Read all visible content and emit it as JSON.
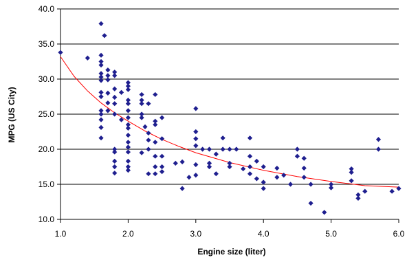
{
  "chart_data": {
    "type": "scatter",
    "title": "",
    "xlabel": "Engine size (liter)",
    "ylabel": "MPG (US City)",
    "xlim": [
      1.0,
      6.0
    ],
    "ylim": [
      10.0,
      40.0
    ],
    "x_ticks": [
      "1.0",
      "2.0",
      "3.0",
      "4.0",
      "5.0",
      "6.0"
    ],
    "y_ticks": [
      "10.0",
      "15.0",
      "20.0",
      "25.0",
      "30.0",
      "35.0",
      "40.0"
    ],
    "grid": "horizontal",
    "marker_color": "#1f1f8f",
    "trend_color": "#ff0000",
    "series": [
      {
        "values": [
          [
            1.0,
            33.8
          ],
          [
            1.4,
            33.0
          ],
          [
            1.6,
            37.9
          ],
          [
            1.6,
            33.4
          ],
          [
            1.6,
            32.5
          ],
          [
            1.6,
            32.0
          ],
          [
            1.6,
            30.8
          ],
          [
            1.6,
            30.3
          ],
          [
            1.6,
            29.8
          ],
          [
            1.6,
            28.1
          ],
          [
            1.6,
            27.5
          ],
          [
            1.6,
            25.5
          ],
          [
            1.6,
            25.0
          ],
          [
            1.6,
            24.2
          ],
          [
            1.6,
            23.1
          ],
          [
            1.6,
            21.6
          ],
          [
            1.65,
            36.2
          ],
          [
            1.7,
            31.3
          ],
          [
            1.7,
            30.5
          ],
          [
            1.7,
            29.9
          ],
          [
            1.7,
            28.0
          ],
          [
            1.7,
            26.6
          ],
          [
            1.7,
            25.5
          ],
          [
            1.8,
            31.0
          ],
          [
            1.8,
            30.5
          ],
          [
            1.8,
            28.6
          ],
          [
            1.8,
            27.4
          ],
          [
            1.8,
            26.5
          ],
          [
            1.8,
            25.0
          ],
          [
            1.8,
            20.0
          ],
          [
            1.8,
            19.6
          ],
          [
            1.8,
            18.3
          ],
          [
            1.8,
            17.5
          ],
          [
            1.8,
            16.6
          ],
          [
            1.9,
            24.2
          ],
          [
            1.9,
            28.1
          ],
          [
            2.0,
            29.5
          ],
          [
            2.0,
            29.0
          ],
          [
            2.0,
            28.5
          ],
          [
            2.0,
            27.0
          ],
          [
            2.0,
            26.5
          ],
          [
            2.0,
            25.5
          ],
          [
            2.0,
            24.5
          ],
          [
            2.0,
            23.5
          ],
          [
            2.0,
            23.0
          ],
          [
            2.0,
            22.0
          ],
          [
            2.0,
            21.0
          ],
          [
            2.0,
            20.3
          ],
          [
            2.0,
            19.6
          ],
          [
            2.0,
            18.3
          ],
          [
            2.0,
            17.5
          ],
          [
            2.0,
            17.0
          ],
          [
            2.2,
            27.8
          ],
          [
            2.2,
            27.0
          ],
          [
            2.2,
            26.5
          ],
          [
            2.2,
            25.0
          ],
          [
            2.2,
            24.5
          ],
          [
            2.2,
            19.5
          ],
          [
            2.25,
            23.2
          ],
          [
            2.3,
            26.5
          ],
          [
            2.3,
            22.3
          ],
          [
            2.3,
            21.3
          ],
          [
            2.3,
            20.0
          ],
          [
            2.3,
            16.5
          ],
          [
            2.4,
            27.8
          ],
          [
            2.4,
            24.0
          ],
          [
            2.4,
            23.5
          ],
          [
            2.4,
            21.0
          ],
          [
            2.4,
            19.0
          ],
          [
            2.4,
            17.5
          ],
          [
            2.4,
            16.5
          ],
          [
            2.5,
            24.5
          ],
          [
            2.5,
            21.5
          ],
          [
            2.5,
            19.0
          ],
          [
            2.5,
            17.5
          ],
          [
            2.5,
            16.8
          ],
          [
            2.7,
            18.0
          ],
          [
            2.8,
            18.2
          ],
          [
            2.8,
            14.4
          ],
          [
            2.9,
            16.0
          ],
          [
            3.0,
            25.8
          ],
          [
            3.0,
            22.5
          ],
          [
            3.0,
            21.5
          ],
          [
            3.0,
            20.5
          ],
          [
            3.0,
            17.8
          ],
          [
            3.0,
            16.3
          ],
          [
            3.1,
            20.0
          ],
          [
            3.2,
            20.0
          ],
          [
            3.2,
            18.0
          ],
          [
            3.2,
            17.5
          ],
          [
            3.3,
            19.3
          ],
          [
            3.3,
            16.5
          ],
          [
            3.4,
            21.6
          ],
          [
            3.4,
            20.0
          ],
          [
            3.5,
            20.0
          ],
          [
            3.5,
            18.0
          ],
          [
            3.5,
            17.5
          ],
          [
            3.6,
            20.0
          ],
          [
            3.7,
            17.2
          ],
          [
            3.8,
            21.6
          ],
          [
            3.8,
            19.0
          ],
          [
            3.8,
            17.5
          ],
          [
            3.8,
            16.5
          ],
          [
            3.9,
            18.3
          ],
          [
            3.9,
            15.8
          ],
          [
            4.0,
            17.5
          ],
          [
            4.0,
            15.3
          ],
          [
            4.0,
            14.4
          ],
          [
            4.2,
            17.3
          ],
          [
            4.2,
            16.0
          ],
          [
            4.3,
            16.3
          ],
          [
            4.4,
            15.0
          ],
          [
            4.5,
            20.0
          ],
          [
            4.5,
            19.0
          ],
          [
            4.6,
            18.7
          ],
          [
            4.6,
            17.3
          ],
          [
            4.6,
            16.0
          ],
          [
            4.7,
            15.0
          ],
          [
            4.7,
            12.3
          ],
          [
            4.9,
            11.0
          ],
          [
            5.0,
            15.0
          ],
          [
            5.0,
            14.5
          ],
          [
            5.3,
            17.2
          ],
          [
            5.3,
            16.7
          ],
          [
            5.3,
            15.5
          ],
          [
            5.4,
            13.5
          ],
          [
            5.4,
            13.0
          ],
          [
            5.5,
            14.0
          ],
          [
            5.7,
            21.4
          ],
          [
            5.7,
            20.0
          ],
          [
            5.9,
            14.0
          ],
          [
            6.0,
            14.4
          ]
        ]
      }
    ],
    "trendline": {
      "type": "power",
      "points": [
        [
          1.0,
          33.2
        ],
        [
          1.2,
          30.4
        ],
        [
          1.4,
          28.3
        ],
        [
          1.6,
          26.6
        ],
        [
          1.8,
          25.2
        ],
        [
          2.0,
          24.0
        ],
        [
          2.25,
          22.6
        ],
        [
          2.5,
          21.4
        ],
        [
          2.75,
          20.4
        ],
        [
          3.0,
          19.5
        ],
        [
          3.5,
          18.1
        ],
        [
          4.0,
          17.0
        ],
        [
          4.5,
          16.1
        ],
        [
          5.0,
          15.4
        ],
        [
          5.5,
          14.8
        ],
        [
          6.0,
          14.6
        ]
      ]
    }
  }
}
